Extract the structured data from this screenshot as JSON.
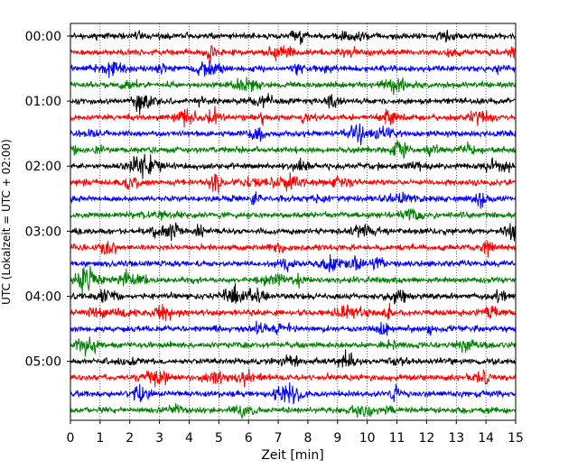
{
  "chart_data": {
    "type": "line",
    "title": "",
    "xlabel": "Zeit  [min]",
    "ylabel": "UTC (Lokalzeit = UTC + 02:00)",
    "xlim": [
      0,
      15
    ],
    "x_ticks": [
      "0",
      "1",
      "2",
      "3",
      "4",
      "5",
      "6",
      "7",
      "8",
      "9",
      "10",
      "11",
      "12",
      "13",
      "14",
      "15"
    ],
    "y_ticks": [
      "00:00",
      "01:00",
      "02:00",
      "03:00",
      "04:00",
      "05:00"
    ],
    "rows_per_hour": 4,
    "row_count": 24,
    "row_colors": [
      "#000000",
      "#ff0000",
      "#0000ff",
      "#008000"
    ],
    "grid": "vertical dotted at each minute"
  }
}
